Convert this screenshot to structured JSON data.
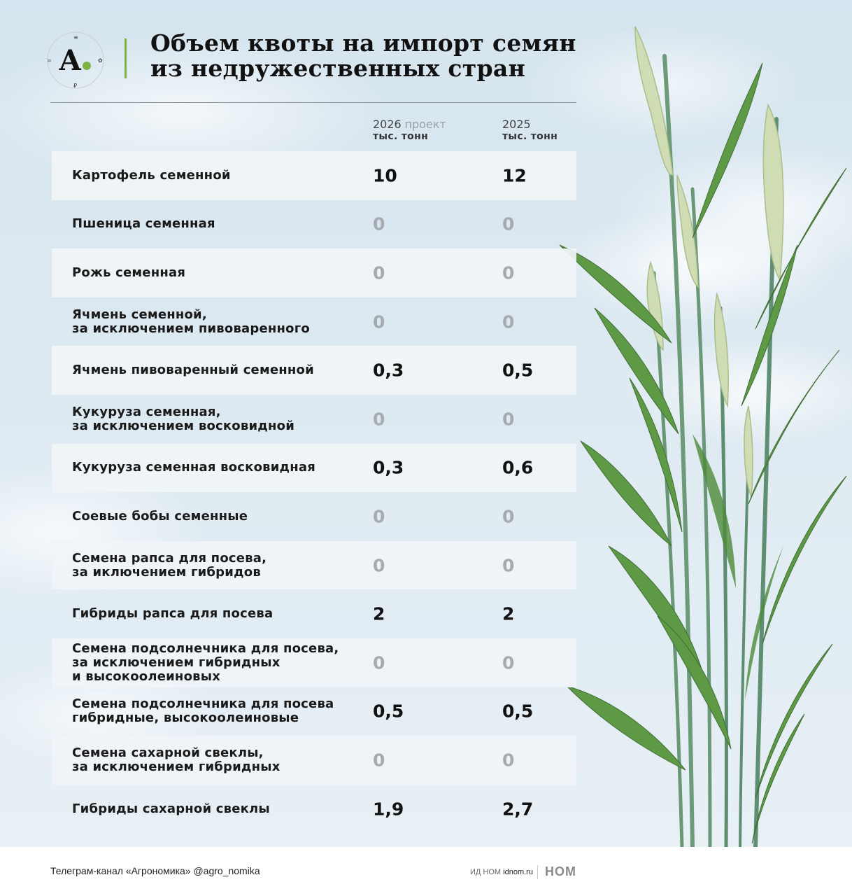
{
  "header": {
    "logo_letter": "А.",
    "title_line1": "Объем квоты на импорт семян",
    "title_line2": "из недружественных стран"
  },
  "columns": {
    "col1_year": "2026",
    "col1_note": "проект",
    "col1_unit": "тыс. тонн",
    "col2_year": "2025",
    "col2_unit": "тыс. тонн"
  },
  "rows": [
    {
      "label": "Картофель семенной",
      "v2026": "10",
      "v2025": "12"
    },
    {
      "label": "Пшеница семенная",
      "v2026": "0",
      "v2025": "0"
    },
    {
      "label": "Рожь семенная",
      "v2026": "0",
      "v2025": "0"
    },
    {
      "label": "Ячмень семенной,\nза исключением пивоваренного",
      "v2026": "0",
      "v2025": "0"
    },
    {
      "label": "Ячмень пивоваренный семенной",
      "v2026": "0,3",
      "v2025": "0,5"
    },
    {
      "label": "Кукуруза семенная,\nза исключением восковидной",
      "v2026": "0",
      "v2025": "0"
    },
    {
      "label": "Кукуруза семенная восковидная",
      "v2026": "0,3",
      "v2025": "0,6"
    },
    {
      "label": "Соевые бобы семенные",
      "v2026": "0",
      "v2025": "0"
    },
    {
      "label": "Семена рапса для посева,\nза иключением гибридов",
      "v2026": "0",
      "v2025": "0"
    },
    {
      "label": "Гибриды рапса для посева",
      "v2026": "2",
      "v2025": "2"
    },
    {
      "label": "Семена подсолнечника для посева,\nза исключением гибридных\nи высокоолеиновых",
      "v2026": "0",
      "v2025": "0"
    },
    {
      "label": "Семена подсолнечника для посева\nгибридные, высокоолеиновые",
      "v2026": "0,5",
      "v2025": "0,5"
    },
    {
      "label": "Семена сахарной свеклы,\nза исключением гибридных",
      "v2026": "0",
      "v2025": "0"
    },
    {
      "label": "Гибриды сахарной свеклы",
      "v2026": "1,9",
      "v2025": "2,7"
    }
  ],
  "footer": {
    "channel": "Телеграм-канал «Агрономика» @agro_nomika",
    "publisher_prefix": "ИД НОМ",
    "publisher_site": "idnom.ru",
    "mark": "НОМ"
  },
  "colors": {
    "accent": "#7bb441",
    "zero_value": "#a6abaf",
    "row_band": "#f0f4f7"
  }
}
